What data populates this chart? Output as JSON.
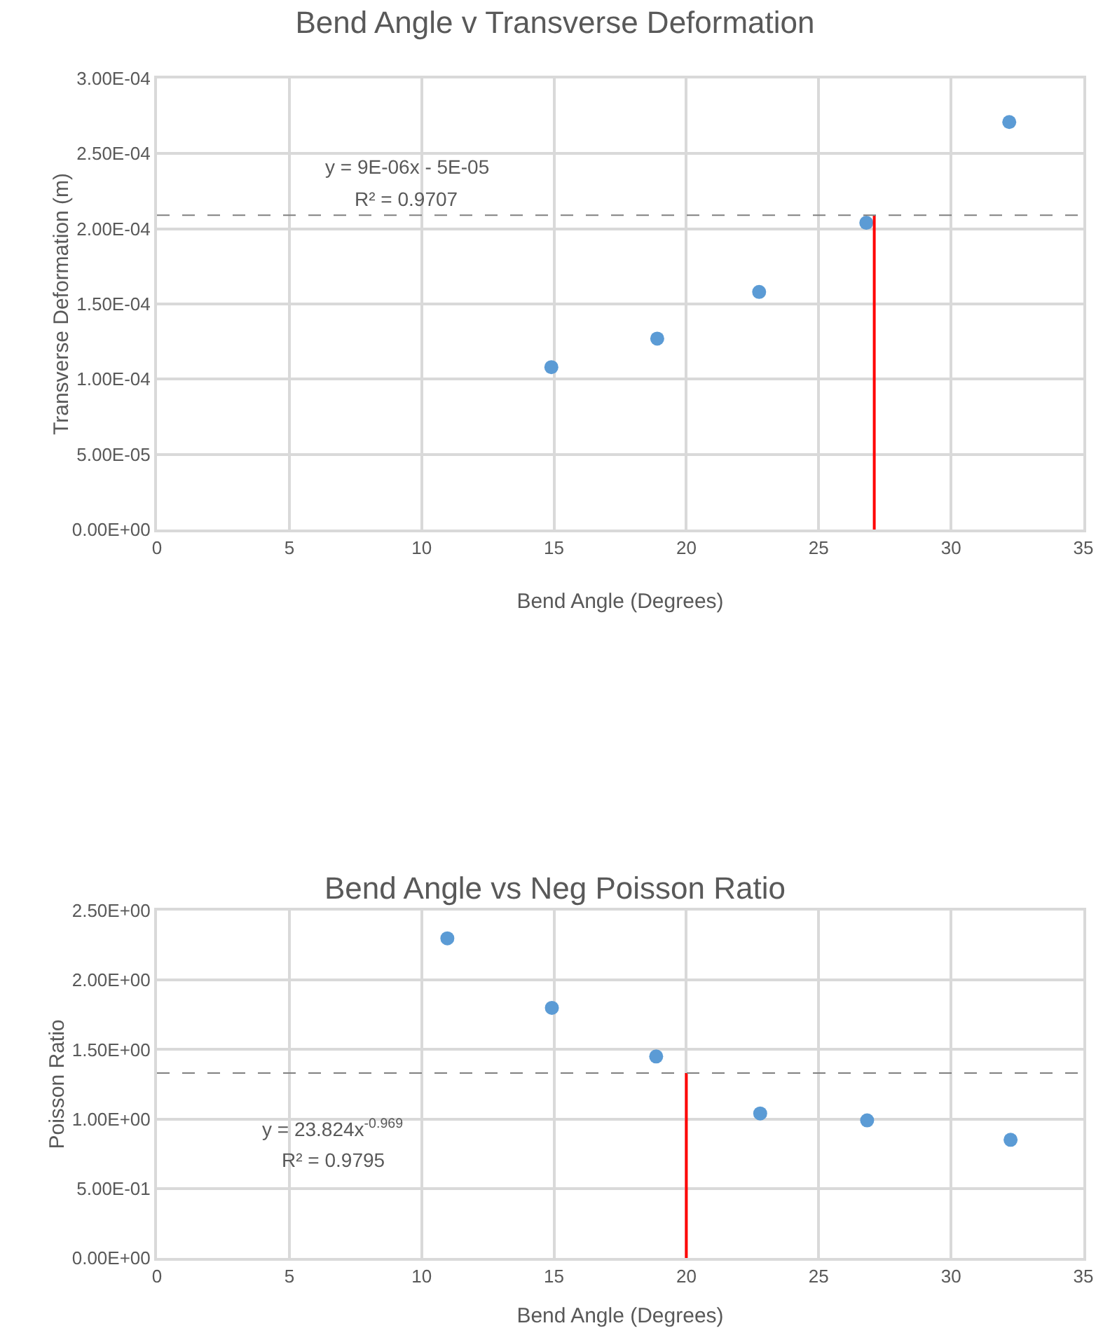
{
  "chart_data": [
    {
      "type": "scatter",
      "title": "Bend Angle v Transverse Deformation",
      "xlabel": "Bend Angle (Degrees)",
      "ylabel": "Transverse Deformation (m)",
      "marker": "circle",
      "grid": true,
      "xlim": [
        0,
        35
      ],
      "xticks": [
        0,
        5,
        10,
        15,
        20,
        25,
        30,
        35
      ],
      "ylim": [
        0,
        0.0003
      ],
      "yticks": [
        {
          "value": 0,
          "label": "0.00E+00"
        },
        {
          "value": 5e-05,
          "label": "5.00E-05"
        },
        {
          "value": 0.0001,
          "label": "1.00E-04"
        },
        {
          "value": 0.00015,
          "label": "1.50E-04"
        },
        {
          "value": 0.0002,
          "label": "2.00E-04"
        },
        {
          "value": 0.00025,
          "label": "2.50E-04"
        },
        {
          "value": 0.0003,
          "label": "3.00E-04"
        }
      ],
      "series": [
        {
          "type": "scatter",
          "color": "#5b9bd5",
          "x": [
            14.9,
            18.9,
            22.75,
            26.8,
            32.2
          ],
          "values": [
            0.000108,
            0.000127,
            0.000158,
            0.000204,
            0.000271
          ]
        },
        {
          "type": "line",
          "color": "#ff0000",
          "marker": "none",
          "line_style": "solid",
          "x": [
            27.1,
            27.1
          ],
          "values": [
            0,
            0.000209
          ]
        }
      ],
      "ref_lines": [
        {
          "axis": "y",
          "value": 0.000209,
          "color": "#808080",
          "line_style": "dashed"
        }
      ],
      "annotations": [
        "y = 9E-06x - 5E-05",
        "R² = 0.9707"
      ]
    },
    {
      "type": "scatter",
      "title": "Bend Angle vs Neg Poisson Ratio",
      "xlabel": "Bend Angle (Degrees)",
      "ylabel": "Poisson Ratio",
      "marker": "circle",
      "grid": true,
      "xlim": [
        0,
        35
      ],
      "xticks": [
        0,
        5,
        10,
        15,
        20,
        25,
        30,
        35
      ],
      "ylim": [
        0,
        2.5
      ],
      "yticks": [
        {
          "value": 0,
          "label": "0.00E+00"
        },
        {
          "value": 0.5,
          "label": "5.00E-01"
        },
        {
          "value": 1,
          "label": "1.00E+00"
        },
        {
          "value": 1.5,
          "label": "1.50E+00"
        },
        {
          "value": 2,
          "label": "2.00E+00"
        },
        {
          "value": 2.5,
          "label": "2.50E+00"
        }
      ],
      "series": [
        {
          "type": "scatter",
          "color": "#5b9bd5",
          "x": [
            10.97,
            14.92,
            18.86,
            22.79,
            26.83,
            32.25
          ],
          "values": [
            2.3,
            1.8,
            1.45,
            1.04,
            0.99,
            0.85
          ]
        },
        {
          "type": "line",
          "color": "#ff0000",
          "marker": "none",
          "line_style": "solid",
          "x": [
            20,
            20
          ],
          "values": [
            0,
            1.33
          ]
        }
      ],
      "ref_lines": [
        {
          "axis": "y",
          "value": 1.33,
          "color": "#808080",
          "line_style": "dashed"
        }
      ],
      "annotations": [
        "y = 23.824x$^{-0.969}$",
        "R² = 0.9795"
      ]
    }
  ]
}
